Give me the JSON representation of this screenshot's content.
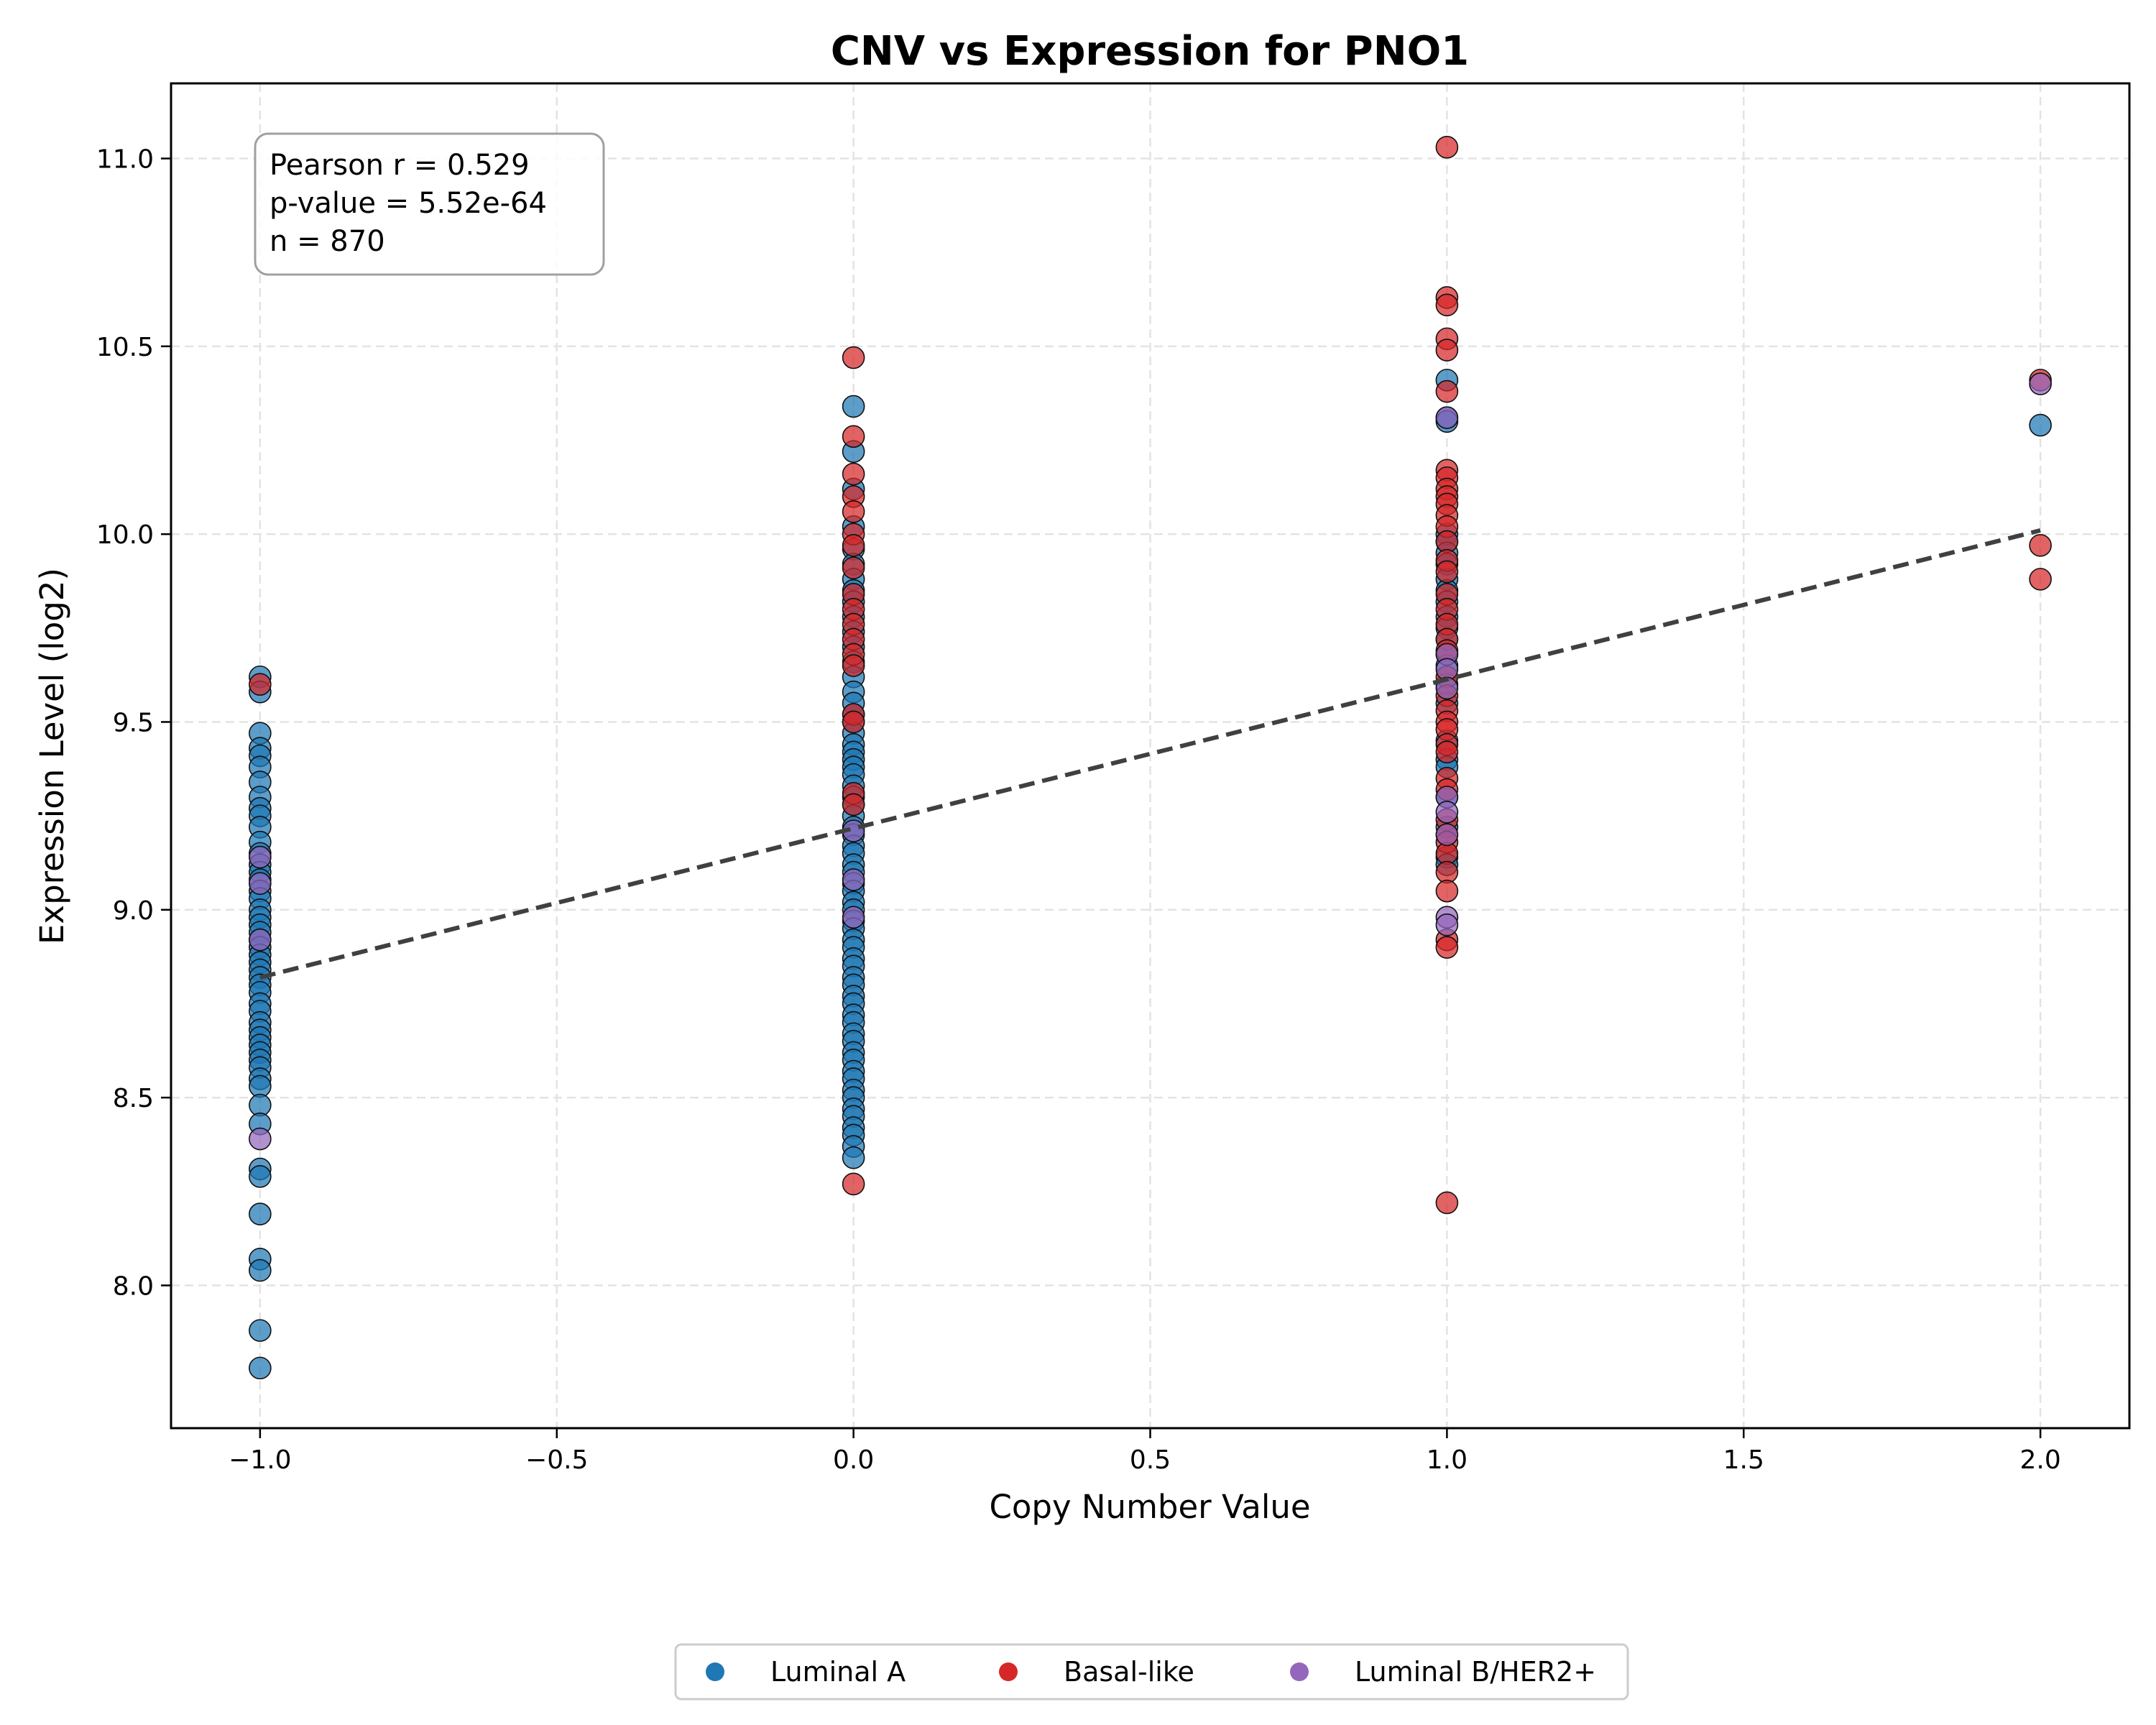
{
  "chart_data": {
    "type": "scatter",
    "title": "CNV vs Expression for PNO1",
    "xlabel": "Copy Number Value",
    "ylabel": "Expression Level (log2)",
    "xlim": [
      -1.15,
      2.15
    ],
    "ylim": [
      7.62,
      11.2
    ],
    "xticks": [
      -1.0,
      -0.5,
      0.0,
      0.5,
      1.0,
      1.5,
      2.0
    ],
    "xtick_labels": [
      "−1.0",
      "−0.5",
      "0.0",
      "0.5",
      "1.0",
      "1.5",
      "2.0"
    ],
    "yticks": [
      8.0,
      8.5,
      9.0,
      9.5,
      10.0,
      10.5,
      11.0
    ],
    "ytick_labels": [
      "8.0",
      "8.5",
      "9.0",
      "9.5",
      "10.0",
      "10.5",
      "11.0"
    ],
    "grid": true,
    "legend_position": "bottom-center (below plot)",
    "stats": {
      "pearson_r": "Pearson r = 0.529",
      "p_value": "p-value = 5.52e-64",
      "n": "n = 870"
    },
    "trend_line": {
      "x": [
        -1.0,
        2.0
      ],
      "y": [
        8.82,
        10.01
      ],
      "color": "#404040",
      "style": "dashed"
    },
    "series": [
      {
        "name": "Luminal A",
        "color": "#1f77b4",
        "points": [
          [
            -1,
            9.62
          ],
          [
            -1,
            9.58
          ],
          [
            -1,
            9.47
          ],
          [
            -1,
            9.43
          ],
          [
            -1,
            9.41
          ],
          [
            -1,
            9.38
          ],
          [
            -1,
            9.34
          ],
          [
            -1,
            9.3
          ],
          [
            -1,
            9.27
          ],
          [
            -1,
            9.25
          ],
          [
            -1,
            9.22
          ],
          [
            -1,
            9.18
          ],
          [
            -1,
            9.15
          ],
          [
            -1,
            9.12
          ],
          [
            -1,
            9.1
          ],
          [
            -1,
            9.08
          ],
          [
            -1,
            9.05
          ],
          [
            -1,
            9.03
          ],
          [
            -1,
            9.0
          ],
          [
            -1,
            8.98
          ],
          [
            -1,
            8.96
          ],
          [
            -1,
            8.94
          ],
          [
            -1,
            8.92
          ],
          [
            -1,
            8.9
          ],
          [
            -1,
            8.88
          ],
          [
            -1,
            8.86
          ],
          [
            -1,
            8.84
          ],
          [
            -1,
            8.82
          ],
          [
            -1,
            8.8
          ],
          [
            -1,
            8.78
          ],
          [
            -1,
            8.75
          ],
          [
            -1,
            8.73
          ],
          [
            -1,
            8.7
          ],
          [
            -1,
            8.68
          ],
          [
            -1,
            8.66
          ],
          [
            -1,
            8.64
          ],
          [
            -1,
            8.62
          ],
          [
            -1,
            8.6
          ],
          [
            -1,
            8.58
          ],
          [
            -1,
            8.55
          ],
          [
            -1,
            8.53
          ],
          [
            -1,
            8.48
          ],
          [
            -1,
            8.43
          ],
          [
            -1,
            8.31
          ],
          [
            -1,
            8.29
          ],
          [
            -1,
            8.19
          ],
          [
            -1,
            8.07
          ],
          [
            -1,
            8.04
          ],
          [
            -1,
            7.88
          ],
          [
            -1,
            7.78
          ],
          [
            0,
            10.34
          ],
          [
            0,
            10.22
          ],
          [
            0,
            10.12
          ],
          [
            0,
            10.02
          ],
          [
            0,
            9.96
          ],
          [
            0,
            9.92
          ],
          [
            0,
            9.88
          ],
          [
            0,
            9.85
          ],
          [
            0,
            9.82
          ],
          [
            0,
            9.78
          ],
          [
            0,
            9.74
          ],
          [
            0,
            9.7
          ],
          [
            0,
            9.66
          ],
          [
            0,
            9.62
          ],
          [
            0,
            9.58
          ],
          [
            0,
            9.55
          ],
          [
            0,
            9.52
          ],
          [
            0,
            9.5
          ],
          [
            0,
            9.47
          ],
          [
            0,
            9.44
          ],
          [
            0,
            9.42
          ],
          [
            0,
            9.4
          ],
          [
            0,
            9.38
          ],
          [
            0,
            9.36
          ],
          [
            0,
            9.33
          ],
          [
            0,
            9.3
          ],
          [
            0,
            9.28
          ],
          [
            0,
            9.25
          ],
          [
            0,
            9.22
          ],
          [
            0,
            9.2
          ],
          [
            0,
            9.17
          ],
          [
            0,
            9.15
          ],
          [
            0,
            9.12
          ],
          [
            0,
            9.1
          ],
          [
            0,
            9.07
          ],
          [
            0,
            9.05
          ],
          [
            0,
            9.02
          ],
          [
            0,
            9.0
          ],
          [
            0,
            8.97
          ],
          [
            0,
            8.95
          ],
          [
            0,
            8.92
          ],
          [
            0,
            8.9
          ],
          [
            0,
            8.87
          ],
          [
            0,
            8.85
          ],
          [
            0,
            8.82
          ],
          [
            0,
            8.8
          ],
          [
            0,
            8.77
          ],
          [
            0,
            8.75
          ],
          [
            0,
            8.72
          ],
          [
            0,
            8.7
          ],
          [
            0,
            8.67
          ],
          [
            0,
            8.65
          ],
          [
            0,
            8.62
          ],
          [
            0,
            8.6
          ],
          [
            0,
            8.57
          ],
          [
            0,
            8.55
          ],
          [
            0,
            8.52
          ],
          [
            0,
            8.5
          ],
          [
            0,
            8.47
          ],
          [
            0,
            8.45
          ],
          [
            0,
            8.42
          ],
          [
            0,
            8.4
          ],
          [
            0,
            8.37
          ],
          [
            0,
            8.34
          ],
          [
            1,
            10.41
          ],
          [
            1,
            10.31
          ],
          [
            1,
            10.3
          ],
          [
            1,
            10.0
          ],
          [
            1,
            9.98
          ],
          [
            1,
            9.95
          ],
          [
            1,
            9.92
          ],
          [
            1,
            9.88
          ],
          [
            1,
            9.85
          ],
          [
            1,
            9.82
          ],
          [
            1,
            9.78
          ],
          [
            1,
            9.75
          ],
          [
            1,
            9.72
          ],
          [
            1,
            9.68
          ],
          [
            1,
            9.65
          ],
          [
            1,
            9.6
          ],
          [
            1,
            9.55
          ],
          [
            1,
            9.45
          ],
          [
            1,
            9.4
          ],
          [
            1,
            9.38
          ],
          [
            1,
            9.3
          ],
          [
            1,
            9.22
          ],
          [
            1,
            9.14
          ],
          [
            1,
            9.12
          ],
          [
            2,
            10.29
          ]
        ]
      },
      {
        "name": "Basal-like",
        "color": "#d62728",
        "points": [
          [
            -1,
            9.6
          ],
          [
            0,
            10.47
          ],
          [
            0,
            10.26
          ],
          [
            0,
            10.16
          ],
          [
            0,
            10.1
          ],
          [
            0,
            10.06
          ],
          [
            0,
            10.0
          ],
          [
            0,
            9.97
          ],
          [
            0,
            9.91
          ],
          [
            0,
            9.84
          ],
          [
            0,
            9.8
          ],
          [
            0,
            9.76
          ],
          [
            0,
            9.72
          ],
          [
            0,
            9.68
          ],
          [
            0,
            9.65
          ],
          [
            0,
            9.52
          ],
          [
            0,
            9.5
          ],
          [
            0,
            9.31
          ],
          [
            0,
            9.28
          ],
          [
            0,
            8.27
          ],
          [
            1,
            11.03
          ],
          [
            1,
            10.63
          ],
          [
            1,
            10.61
          ],
          [
            1,
            10.52
          ],
          [
            1,
            10.49
          ],
          [
            1,
            10.38
          ],
          [
            1,
            10.17
          ],
          [
            1,
            10.15
          ],
          [
            1,
            10.12
          ],
          [
            1,
            10.1
          ],
          [
            1,
            10.08
          ],
          [
            1,
            10.05
          ],
          [
            1,
            10.02
          ],
          [
            1,
            9.98
          ],
          [
            1,
            9.93
          ],
          [
            1,
            9.9
          ],
          [
            1,
            9.84
          ],
          [
            1,
            9.8
          ],
          [
            1,
            9.76
          ],
          [
            1,
            9.72
          ],
          [
            1,
            9.69
          ],
          [
            1,
            9.62
          ],
          [
            1,
            9.57
          ],
          [
            1,
            9.53
          ],
          [
            1,
            9.5
          ],
          [
            1,
            9.48
          ],
          [
            1,
            9.44
          ],
          [
            1,
            9.42
          ],
          [
            1,
            9.35
          ],
          [
            1,
            9.32
          ],
          [
            1,
            9.24
          ],
          [
            1,
            9.2
          ],
          [
            1,
            9.18
          ],
          [
            1,
            9.15
          ],
          [
            1,
            9.1
          ],
          [
            1,
            9.05
          ],
          [
            1,
            8.92
          ],
          [
            1,
            8.9
          ],
          [
            1,
            8.22
          ],
          [
            2,
            10.41
          ],
          [
            2,
            9.97
          ],
          [
            2,
            9.88
          ]
        ]
      },
      {
        "name": "Luminal B/HER2+",
        "color": "#9467bd",
        "points": [
          [
            -1,
            9.14
          ],
          [
            -1,
            9.07
          ],
          [
            -1,
            8.92
          ],
          [
            -1,
            8.39
          ],
          [
            0,
            9.21
          ],
          [
            0,
            9.08
          ],
          [
            0,
            8.98
          ],
          [
            1,
            10.31
          ],
          [
            1,
            9.68
          ],
          [
            1,
            9.64
          ],
          [
            1,
            9.59
          ],
          [
            1,
            9.3
          ],
          [
            1,
            9.26
          ],
          [
            1,
            9.2
          ],
          [
            1,
            8.98
          ],
          [
            1,
            8.96
          ],
          [
            2,
            10.4
          ]
        ]
      }
    ]
  }
}
